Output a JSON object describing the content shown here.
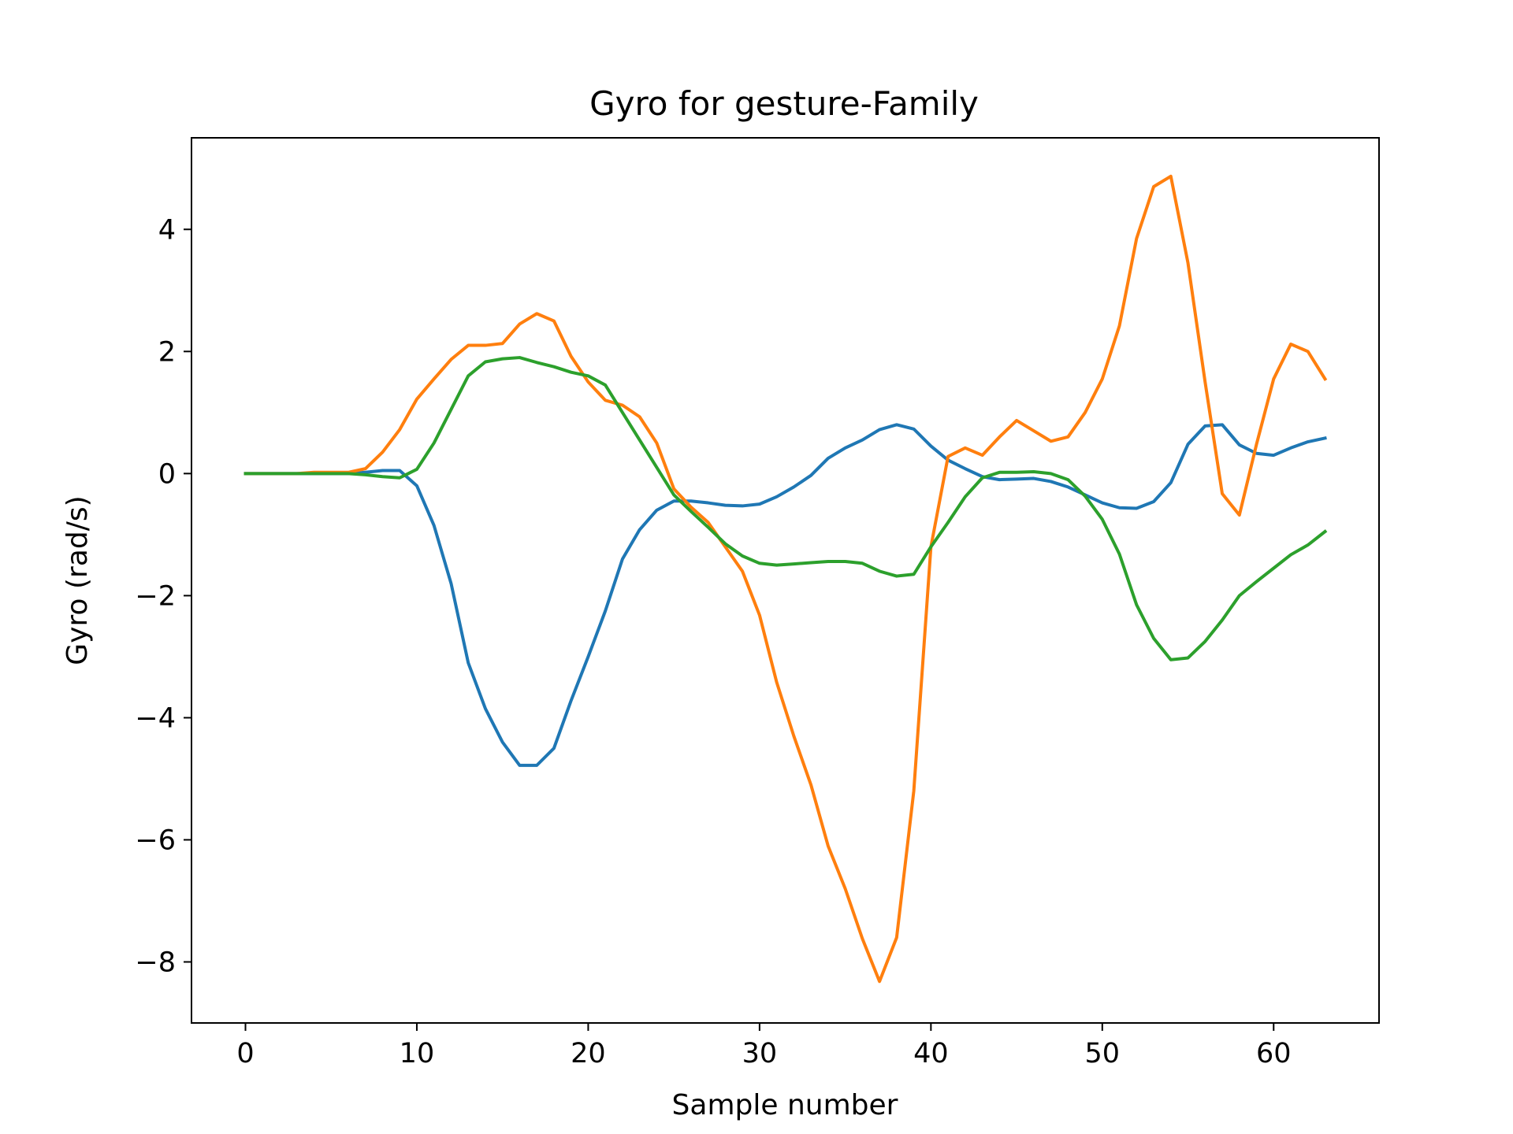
{
  "chart_data": {
    "type": "line",
    "title": "Gyro for gesture-Family",
    "xlabel": "Sample number",
    "ylabel": "Gyro  (rad/s)",
    "xlim": [
      -3.15,
      66.15
    ],
    "ylim": [
      -9.0,
      5.5
    ],
    "xticks": [
      0,
      10,
      20,
      30,
      40,
      50,
      60
    ],
    "yticks": [
      -8,
      -6,
      -4,
      -2,
      0,
      2,
      4
    ],
    "xtick_labels": [
      "0",
      "10",
      "20",
      "30",
      "40",
      "50",
      "60"
    ],
    "ytick_labels": [
      "−8",
      "−6",
      "−4",
      "−2",
      "0",
      "2",
      "4"
    ],
    "grid": false,
    "x": [
      0,
      1,
      2,
      3,
      4,
      5,
      6,
      7,
      8,
      9,
      10,
      11,
      12,
      13,
      14,
      15,
      16,
      17,
      18,
      19,
      20,
      21,
      22,
      23,
      24,
      25,
      26,
      27,
      28,
      29,
      30,
      31,
      32,
      33,
      34,
      35,
      36,
      37,
      38,
      39,
      40,
      41,
      42,
      43,
      44,
      45,
      46,
      47,
      48,
      49,
      50,
      51,
      52,
      53,
      54,
      55,
      56,
      57,
      58,
      59,
      60,
      61,
      62,
      63
    ],
    "series": [
      {
        "color": "#1f77b4",
        "values": [
          0,
          0,
          0,
          0,
          0,
          0,
          0,
          0.02,
          0.05,
          0.05,
          -0.2,
          -0.85,
          -1.8,
          -3.1,
          -3.85,
          -4.4,
          -4.78,
          -4.78,
          -4.5,
          -3.72,
          -3.0,
          -2.25,
          -1.4,
          -0.92,
          -0.6,
          -0.45,
          -0.45,
          -0.48,
          -0.52,
          -0.53,
          -0.5,
          -0.38,
          -0.22,
          -0.03,
          0.25,
          0.42,
          0.55,
          0.72,
          0.8,
          0.73,
          0.45,
          0.22,
          0.08,
          -0.05,
          -0.1,
          -0.09,
          -0.08,
          -0.13,
          -0.22,
          -0.35,
          -0.48,
          -0.56,
          -0.57,
          -0.46,
          -0.15,
          0.48,
          0.78,
          0.8,
          0.47,
          0.33,
          0.3,
          0.42,
          0.52,
          0.58
        ]
      },
      {
        "color": "#ff7f0e",
        "values": [
          0,
          0,
          0,
          0,
          0.02,
          0.02,
          0.02,
          0.08,
          0.35,
          0.72,
          1.22,
          1.55,
          1.87,
          2.1,
          2.1,
          2.13,
          2.45,
          2.62,
          2.5,
          1.92,
          1.5,
          1.2,
          1.12,
          0.93,
          0.5,
          -0.25,
          -0.55,
          -0.8,
          -1.2,
          -1.6,
          -2.32,
          -3.42,
          -4.3,
          -5.1,
          -6.1,
          -6.8,
          -7.62,
          -8.32,
          -7.6,
          -5.2,
          -1.2,
          0.28,
          0.42,
          0.3,
          0.6,
          0.87,
          0.7,
          0.53,
          0.6,
          1.0,
          1.55,
          2.42,
          3.85,
          4.7,
          4.87,
          3.45,
          1.5,
          -0.33,
          -0.68,
          0.48,
          1.55,
          2.12,
          2.0,
          1.55
        ]
      },
      {
        "color": "#2ca02c",
        "values": [
          0,
          0,
          0,
          0,
          0,
          0,
          0,
          -0.02,
          -0.05,
          -0.07,
          0.07,
          0.5,
          1.05,
          1.6,
          1.83,
          1.88,
          1.9,
          1.82,
          1.75,
          1.66,
          1.6,
          1.45,
          1.0,
          0.55,
          0.1,
          -0.35,
          -0.62,
          -0.88,
          -1.15,
          -1.35,
          -1.47,
          -1.5,
          -1.48,
          -1.46,
          -1.44,
          -1.44,
          -1.47,
          -1.6,
          -1.68,
          -1.65,
          -1.2,
          -0.8,
          -0.38,
          -0.07,
          0.02,
          0.02,
          0.03,
          0,
          -0.1,
          -0.37,
          -0.75,
          -1.32,
          -2.15,
          -2.7,
          -3.05,
          -3.02,
          -2.75,
          -2.4,
          -2.0,
          -1.77,
          -1.55,
          -1.33,
          -1.17,
          -0.95
        ]
      }
    ]
  }
}
